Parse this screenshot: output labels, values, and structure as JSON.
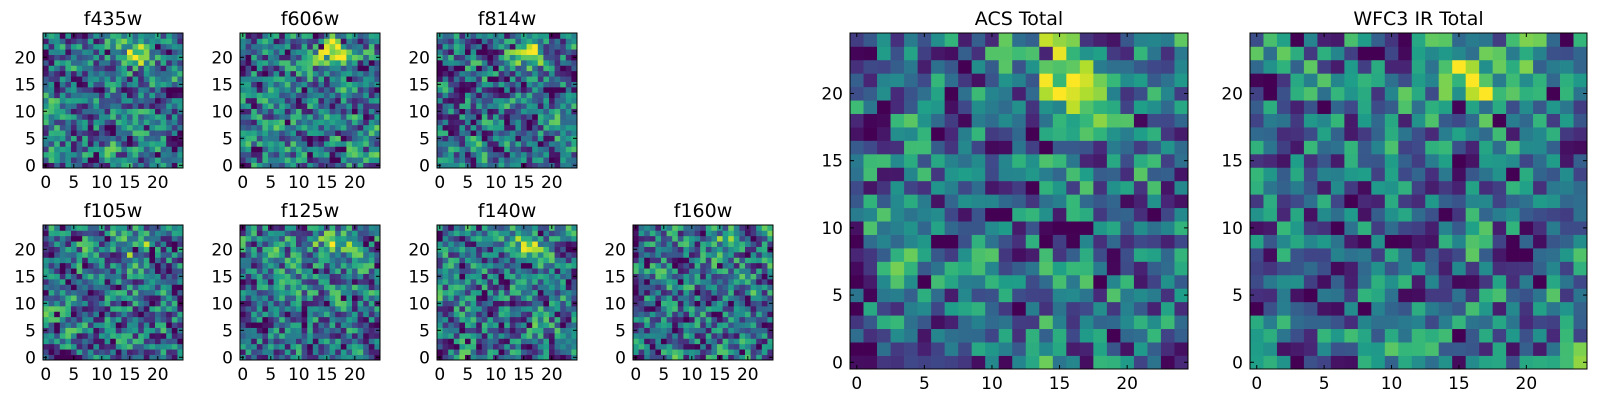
{
  "chart_data": [
    {
      "type": "heatmap",
      "title": "f435w",
      "xlim": [
        0,
        24
      ],
      "ylim": [
        0,
        24
      ],
      "xticks": [
        0,
        5,
        10,
        15,
        20
      ],
      "yticks": [
        0,
        5,
        10,
        15,
        20
      ],
      "colormap": "viridis",
      "seed": 3,
      "hotspot": {
        "x": 16,
        "y": 21,
        "strength": 0.35
      }
    },
    {
      "type": "heatmap",
      "title": "f606w",
      "xlim": [
        0,
        24
      ],
      "ylim": [
        0,
        24
      ],
      "xticks": [
        0,
        5,
        10,
        15,
        20
      ],
      "yticks": [
        0,
        5,
        10,
        15,
        20
      ],
      "colormap": "viridis",
      "seed": 7,
      "hotspot": {
        "x": 16,
        "y": 21,
        "strength": 0.55
      }
    },
    {
      "type": "heatmap",
      "title": "f814w",
      "xlim": [
        0,
        24
      ],
      "ylim": [
        0,
        24
      ],
      "xticks": [
        0,
        5,
        10,
        15,
        20
      ],
      "yticks": [
        0,
        5,
        10,
        15,
        20
      ],
      "colormap": "viridis",
      "seed": 11,
      "hotspot": {
        "x": 16,
        "y": 21,
        "strength": 0.5
      }
    },
    {
      "type": "heatmap",
      "title": "f105w",
      "xlim": [
        0,
        24
      ],
      "ylim": [
        0,
        24
      ],
      "xticks": [
        0,
        5,
        10,
        15,
        20
      ],
      "yticks": [
        0,
        5,
        10,
        15,
        20
      ],
      "colormap": "viridis",
      "seed": 13,
      "hotspot": {
        "x": 16,
        "y": 21,
        "strength": 0.4
      }
    },
    {
      "type": "heatmap",
      "title": "f125w",
      "xlim": [
        0,
        24
      ],
      "ylim": [
        0,
        24
      ],
      "xticks": [
        0,
        5,
        10,
        15,
        20
      ],
      "yticks": [
        0,
        5,
        10,
        15,
        20
      ],
      "colormap": "viridis",
      "seed": 17,
      "hotspot": {
        "x": 16,
        "y": 21,
        "strength": 0.35
      }
    },
    {
      "type": "heatmap",
      "title": "f140w",
      "xlim": [
        0,
        24
      ],
      "ylim": [
        0,
        24
      ],
      "xticks": [
        0,
        5,
        10,
        15,
        20
      ],
      "yticks": [
        0,
        5,
        10,
        15,
        20
      ],
      "colormap": "viridis",
      "seed": 19,
      "hotspot": {
        "x": 16,
        "y": 21,
        "strength": 0.35
      }
    },
    {
      "type": "heatmap",
      "title": "f160w",
      "xlim": [
        0,
        24
      ],
      "ylim": [
        0,
        24
      ],
      "xticks": [
        0,
        5,
        10,
        15,
        20
      ],
      "yticks": [
        0,
        5,
        10,
        15,
        20
      ],
      "colormap": "viridis",
      "seed": 23,
      "hotspot": {
        "x": 16,
        "y": 21,
        "strength": 0.3
      }
    },
    {
      "type": "heatmap",
      "title": "ACS Total",
      "xlim": [
        0,
        24
      ],
      "ylim": [
        0,
        24
      ],
      "xticks": [
        0,
        5,
        10,
        15,
        20
      ],
      "yticks": [
        0,
        5,
        10,
        15,
        20
      ],
      "colormap": "viridis",
      "seed": 29,
      "hotspot": {
        "x": 16,
        "y": 21,
        "strength": 0.6
      }
    },
    {
      "type": "heatmap",
      "title": "WFC3 IR Total",
      "xlim": [
        0,
        24
      ],
      "ylim": [
        0,
        24
      ],
      "xticks": [
        0,
        5,
        10,
        15,
        20
      ],
      "yticks": [
        0,
        5,
        10,
        15,
        20
      ],
      "colormap": "viridis",
      "seed": 31,
      "hotspot": {
        "x": 16,
        "y": 21,
        "strength": 0.55
      }
    }
  ]
}
